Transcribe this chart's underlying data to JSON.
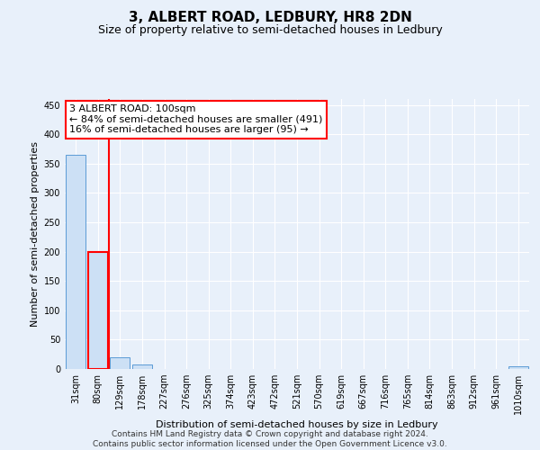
{
  "title": "3, ALBERT ROAD, LEDBURY, HR8 2DN",
  "subtitle": "Size of property relative to semi-detached houses in Ledbury",
  "xlabel": "Distribution of semi-detached houses by size in Ledbury",
  "ylabel": "Number of semi-detached properties",
  "categories": [
    "31sqm",
    "80sqm",
    "129sqm",
    "178sqm",
    "227sqm",
    "276sqm",
    "325sqm",
    "374sqm",
    "423sqm",
    "472sqm",
    "521sqm",
    "570sqm",
    "619sqm",
    "667sqm",
    "716sqm",
    "765sqm",
    "814sqm",
    "863sqm",
    "912sqm",
    "961sqm",
    "1010sqm"
  ],
  "values": [
    365,
    200,
    20,
    7,
    0,
    0,
    0,
    0,
    0,
    0,
    0,
    0,
    0,
    0,
    0,
    0,
    0,
    0,
    0,
    0,
    5
  ],
  "bar_color": "#cce0f5",
  "bar_edge_color": "#5b9bd5",
  "highlight_bar_index": 1,
  "highlight_bar_edge_color": "#ff0000",
  "red_line_x": 1.5,
  "annotation_text": "3 ALBERT ROAD: 100sqm\n← 84% of semi-detached houses are smaller (491)\n16% of semi-detached houses are larger (95) →",
  "annotation_box_color": "#ffffff",
  "annotation_box_edge_color": "#ff0000",
  "ylim": [
    0,
    460
  ],
  "yticks": [
    0,
    50,
    100,
    150,
    200,
    250,
    300,
    350,
    400,
    450
  ],
  "footer_line1": "Contains HM Land Registry data © Crown copyright and database right 2024.",
  "footer_line2": "Contains public sector information licensed under the Open Government Licence v3.0.",
  "bg_color": "#e8f0fa",
  "plot_bg_color": "#e8f0fa",
  "grid_color": "#ffffff",
  "title_fontsize": 11,
  "subtitle_fontsize": 9,
  "axis_label_fontsize": 8,
  "tick_fontsize": 7,
  "annotation_fontsize": 8,
  "footer_fontsize": 6.5
}
